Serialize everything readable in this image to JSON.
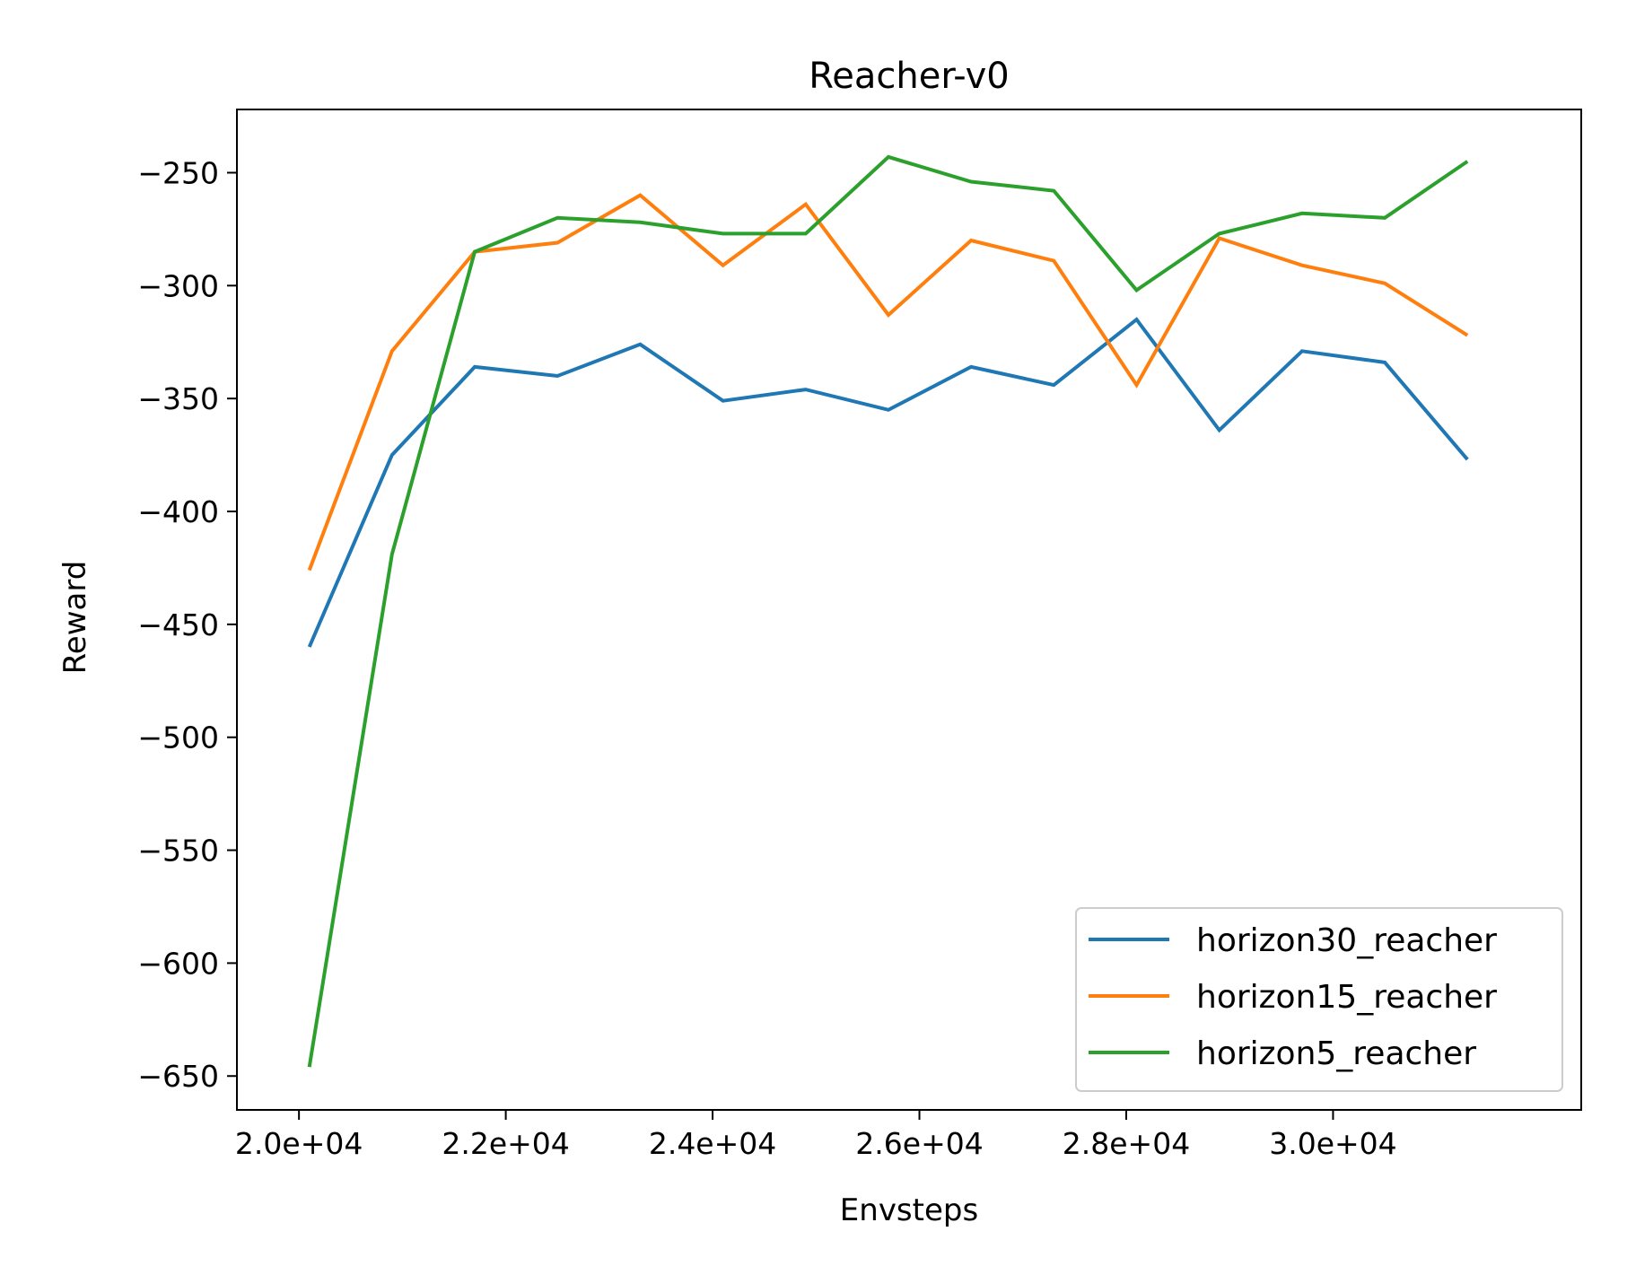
{
  "chart_data": {
    "type": "line",
    "title": "Reacher-v0",
    "xlabel": "Envsteps",
    "ylabel": "Reward",
    "xlim": [
      19400,
      32400
    ],
    "ylim": [
      -665,
      -222
    ],
    "xticks": [
      20000,
      22000,
      24000,
      26000,
      28000,
      30000
    ],
    "xtick_labels": [
      "2.0e+04",
      "2.2e+04",
      "2.4e+04",
      "2.6e+04",
      "2.8e+04",
      "3.0e+04"
    ],
    "yticks": [
      -250,
      -300,
      -350,
      -400,
      -450,
      -500,
      -550,
      -600,
      -650
    ],
    "ytick_labels": [
      "−250",
      "−300",
      "−350",
      "−400",
      "−450",
      "−500",
      "−550",
      "−600",
      "−650"
    ],
    "grid": false,
    "legend_position": "lower-right",
    "x": [
      20100,
      20900,
      21700,
      22500,
      23300,
      24100,
      24900,
      25700,
      26500,
      27300,
      28100,
      28900,
      29700,
      30500,
      31300
    ],
    "series": [
      {
        "name": "horizon30_reacher",
        "color": "#1f77b4",
        "values": [
          -460,
          -375,
          -336,
          -340,
          -326,
          -351,
          -346,
          -355,
          -336,
          -344,
          -315,
          -364,
          -329,
          -334,
          -377
        ]
      },
      {
        "name": "horizon15_reacher",
        "color": "#ff7f0e",
        "values": [
          -426,
          -329,
          -285,
          -281,
          -260,
          -291,
          -264,
          -313,
          -280,
          -289,
          -344,
          -279,
          -291,
          -299,
          -322
        ]
      },
      {
        "name": "horizon5_reacher",
        "color": "#2ca02c",
        "values": [
          -646,
          -419,
          -285,
          -270,
          -272,
          -277,
          -277,
          -243,
          -254,
          -258,
          -302,
          -277,
          -268,
          -270,
          -245
        ]
      }
    ]
  }
}
